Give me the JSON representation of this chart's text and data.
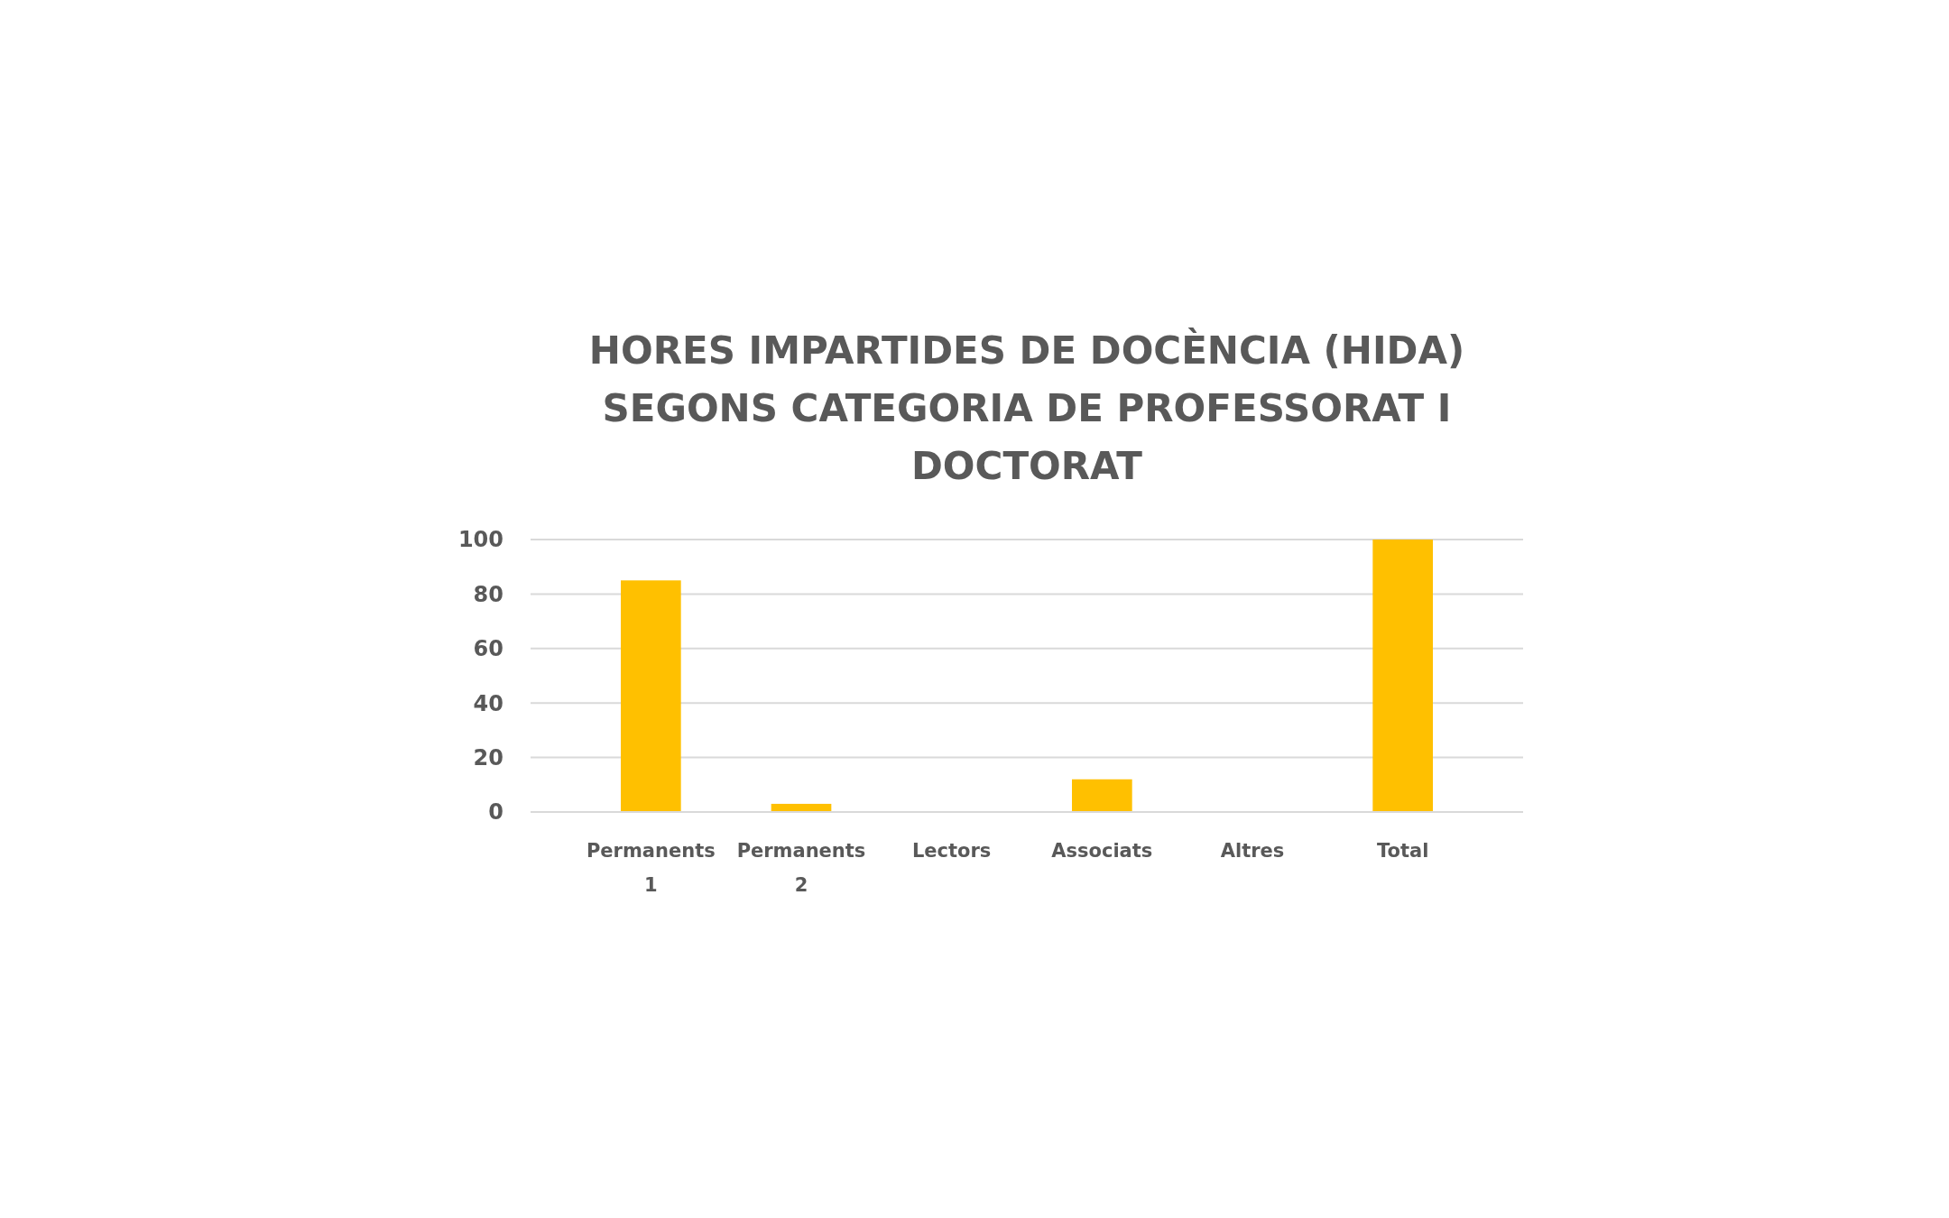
{
  "chart_data": {
    "type": "bar",
    "title": "HORES IMPARTIDES DE DOCÈNCIA (HIDA) SEGONS CATEGORIA DE PROFESSORAT I DOCTORAT",
    "categories": [
      "Permanents 1",
      "Permanents 2",
      "Lectors",
      "Associats",
      "Altres",
      "Total"
    ],
    "values": [
      85,
      3,
      0,
      12,
      0,
      100
    ],
    "color": "#ffc000",
    "ylim": [
      0,
      100
    ],
    "yticks": [
      0,
      20,
      40,
      60,
      80,
      100
    ],
    "grid": "y"
  }
}
